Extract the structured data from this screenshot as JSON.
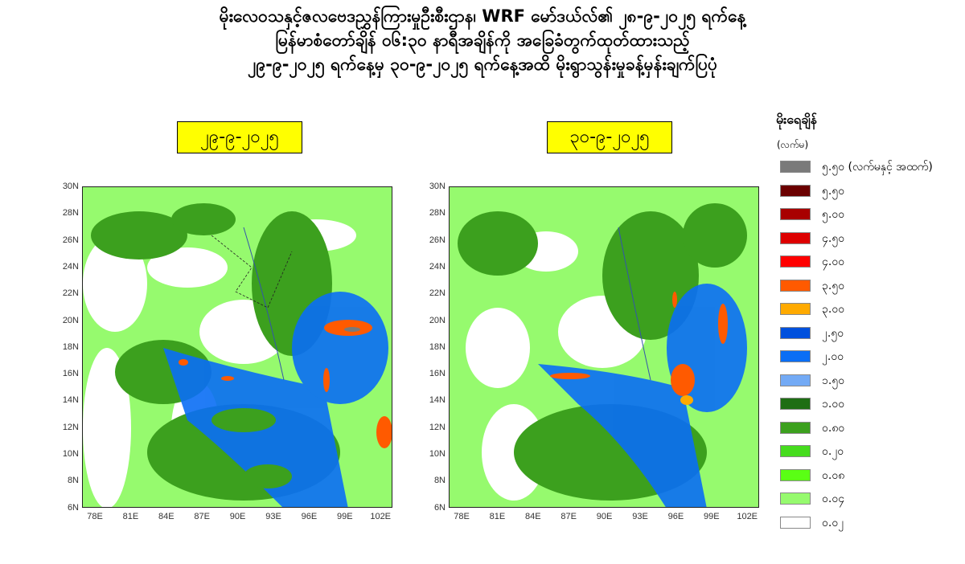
{
  "title": {
    "line1": "မိုးလေဝသနှင့်ဇလဗေဒညွှန်ကြားမှုဦးစီးဌာန၊ WRF မော်ဒယ်လ်၏ ၂၈-၉-၂၀၂၅ ရက်နေ့",
    "line2": "မြန်မာစံတော်ချိန် ၀၆:၃၀ နာရီအချိန်ကို အခြေခံတွက်ထုတ်ထားသည့်",
    "line3": "၂၉-၉-၂၀၂၅ ရက်နေ့မှ ၃၀-၉-၂၀၂၅ ရက်နေ့အထိ မိုးရွာသွန်းမှုခန့်မှန်းချက်ပြပုံ"
  },
  "maps": [
    {
      "date": "၂၉-၉-၂၀၂၅"
    },
    {
      "date": "၃၀-၉-၂၀၂၅"
    }
  ],
  "axes": {
    "lat_labels": [
      "30N",
      "28N",
      "26N",
      "24N",
      "22N",
      "20N",
      "18N",
      "16N",
      "14N",
      "12N",
      "10N",
      "8N",
      "6N"
    ],
    "lon_labels": [
      "78E",
      "81E",
      "84E",
      "87E",
      "90E",
      "93E",
      "96E",
      "99E",
      "102E"
    ]
  },
  "legend": {
    "title": "မိုးရေချိန်",
    "unit": "(လက်မ)",
    "items": [
      {
        "label": "၅.၅၀ (လက်မနှင့် အထက်)",
        "color": "#7a7a7a"
      },
      {
        "label": "၅.၅၀",
        "color": "#6b0000"
      },
      {
        "label": "၅.၀၀",
        "color": "#a80000"
      },
      {
        "label": "၄.၅၀",
        "color": "#dd0000"
      },
      {
        "label": "၄.၀၀",
        "color": "#ff0000"
      },
      {
        "label": "၃.၅၀",
        "color": "#ff5a00"
      },
      {
        "label": "၃.၀၀",
        "color": "#ffaa00"
      },
      {
        "label": "၂.၅၀",
        "color": "#0050dd"
      },
      {
        "label": "၂.၀၀",
        "color": "#0a6ef5"
      },
      {
        "label": "၁.၅၀",
        "color": "#73aaf5"
      },
      {
        "label": "၁.၀၀",
        "color": "#1e6e14"
      },
      {
        "label": "၀.၈၀",
        "color": "#3ca01e"
      },
      {
        "label": "၀.၂၀",
        "color": "#46dc1e"
      },
      {
        "label": "၀.၀၈",
        "color": "#5aff14"
      },
      {
        "label": "၀.၀၄",
        "color": "#96fa6e"
      },
      {
        "label": "၀.၀၂",
        "color": "#ffffff"
      }
    ]
  }
}
